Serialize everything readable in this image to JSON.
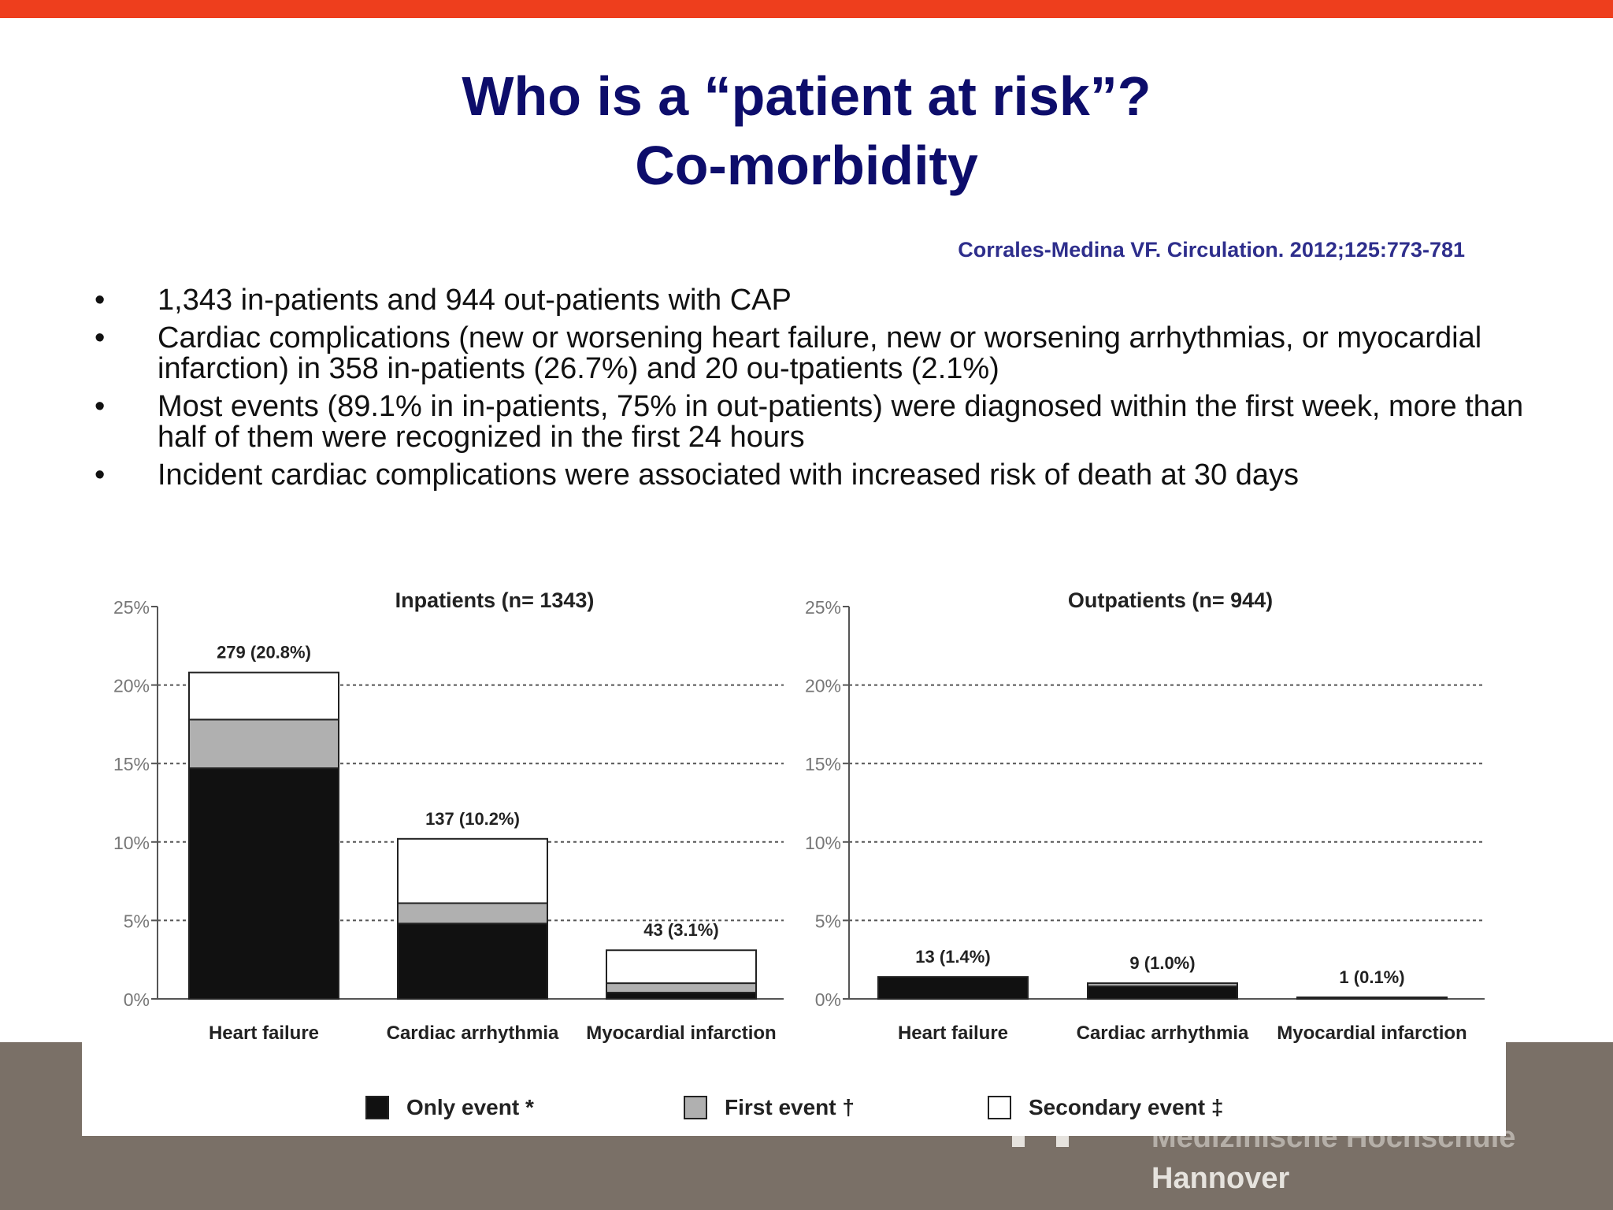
{
  "slide": {
    "title_line1": "Who is a “patient at risk”?",
    "title_line2": "Co-morbidity",
    "citation": "Corrales-Medina VF. Circulation. 2012;125:773-781",
    "bullet_char": "•",
    "bullets": [
      "1,343 in-patients and 944 out-patients with CAP",
      "Cardiac complications (new or worsening heart failure, new or worsening arrhythmias, or myocardial infarction) in 358 in-patients (26.7%) and 20 ou-tpatients (2.1%)",
      "Most events (89.1% in in-patients, 75% in out-patients) were diagnosed within the first week, more than half of them were recognized in the first 24 hours",
      "Incident cardiac complications were associated with increased risk of death at 30 days"
    ],
    "logo_line1": "Medizinische Hochschule",
    "logo_line2": "Hannover",
    "colors": {
      "top_bar": "#ee3e1d",
      "footer": "#7a7067",
      "title": "#0d0d6b",
      "citation": "#2e2e8c"
    }
  },
  "chart_data": [
    {
      "type": "bar",
      "stacked": true,
      "title": "Inpatients (n= 1343)",
      "categories": [
        "Heart failure",
        "Cardiac arrhythmia",
        "Myocardial infarction"
      ],
      "series": [
        {
          "name": "Only event *",
          "color": "#111111",
          "values": [
            14.7,
            4.8,
            0.4
          ]
        },
        {
          "name": "First event †",
          "color": "#b0b0b0",
          "values": [
            3.1,
            1.3,
            0.6
          ]
        },
        {
          "name": "Secondary event ‡",
          "color": "#ffffff",
          "values": [
            3.0,
            4.1,
            2.1
          ]
        }
      ],
      "data_labels": [
        "279 (20.8%)",
        "137 (10.2%)",
        "43 (3.1%)"
      ],
      "totals": [
        20.8,
        10.2,
        3.1
      ],
      "y_ticks": [
        "0%",
        "5%",
        "10%",
        "15%",
        "20%",
        "25%"
      ],
      "ylim": [
        0,
        25
      ],
      "grid": true
    },
    {
      "type": "bar",
      "stacked": true,
      "title": "Outpatients (n= 944)",
      "categories": [
        "Heart failure",
        "Cardiac arrhythmia",
        "Myocardial infarction"
      ],
      "series": [
        {
          "name": "Only event *",
          "color": "#111111",
          "values": [
            1.4,
            0.8,
            0.0
          ]
        },
        {
          "name": "First event †",
          "color": "#b0b0b0",
          "values": [
            0.0,
            0.2,
            0.1
          ]
        },
        {
          "name": "Secondary event ‡",
          "color": "#ffffff",
          "values": [
            0.0,
            0.0,
            0.0
          ]
        }
      ],
      "data_labels": [
        "13 (1.4%)",
        "9 (1.0%)",
        "1 (0.1%)"
      ],
      "totals": [
        1.4,
        1.0,
        0.1
      ],
      "y_ticks": [
        "0%",
        "5%",
        "10%",
        "15%",
        "20%",
        "25%"
      ],
      "ylim": [
        0,
        25
      ],
      "grid": true
    }
  ],
  "legend": [
    {
      "label": "Only event *",
      "color": "#111111"
    },
    {
      "label": "First event †",
      "color": "#b0b0b0"
    },
    {
      "label": "Secondary  event ‡",
      "color": "#ffffff"
    }
  ]
}
